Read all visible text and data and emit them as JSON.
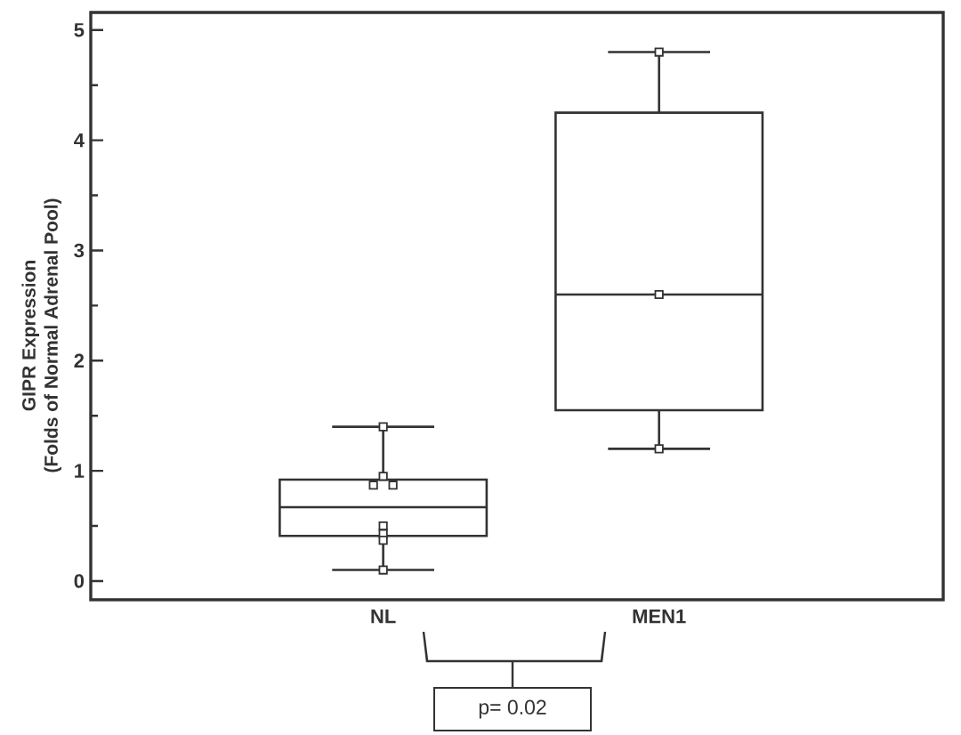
{
  "chart_data": {
    "type": "box",
    "ylabel": "GIPR Expression (Folds of Normal Adrenal Pool)",
    "categories": [
      "NL",
      "MEN1"
    ],
    "ylim": [
      -0.17,
      5.16
    ],
    "yticks": [
      0,
      {
        "value": 0.5,
        "label": null
      },
      1,
      {
        "value": 1.5,
        "label": null
      },
      2,
      {
        "value": 2.5,
        "label": null
      },
      3,
      {
        "value": 3.5,
        "label": null
      },
      4,
      {
        "value": 4.5,
        "label": null
      },
      5
    ],
    "marker": "square",
    "annotations": [
      "p= 0.02"
    ],
    "series": [
      {
        "type": "box",
        "color": "#333333",
        "boxes": [
          {
            "low": 0.1,
            "q1": 0.41,
            "median": 0.67,
            "q3": 0.92,
            "high": 1.4
          },
          {
            "low": 1.2,
            "q1": 1.55,
            "median": 2.6,
            "q3": 4.25,
            "high": 4.8
          }
        ]
      },
      {
        "type": "scatter",
        "color": "#333333",
        "x": [
          "NL",
          "NL",
          "NL",
          "NL",
          "NL",
          "NL",
          "NL",
          "NL",
          "MEN1",
          "MEN1",
          "MEN1"
        ],
        "values": [
          1.4,
          0.95,
          0.87,
          0.87,
          0.5,
          0.43,
          0.37,
          0.1,
          4.8,
          2.6,
          1.2
        ]
      }
    ]
  }
}
